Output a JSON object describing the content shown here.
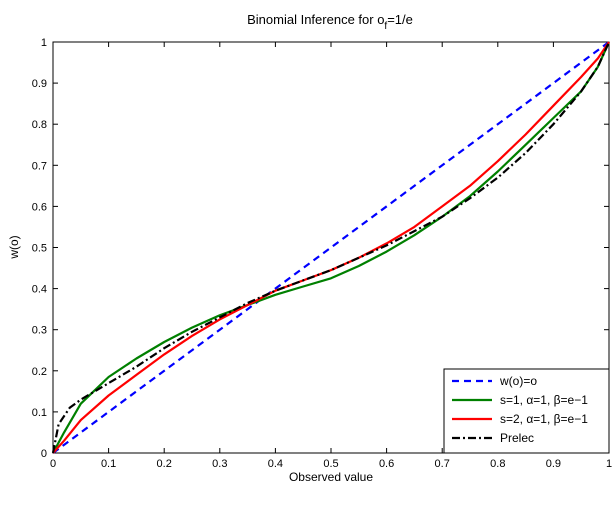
{
  "chart_data": {
    "type": "line",
    "title_main": "Binomial Inference for o",
    "title_sub": "f",
    "title_tail": "=1/e",
    "xlabel": "Observed value",
    "ylabel": "w(o)",
    "xlim": [
      0,
      1
    ],
    "ylim": [
      0,
      1
    ],
    "xticks": [
      "0",
      "0.1",
      "0.2",
      "0.3",
      "0.4",
      "0.5",
      "0.6",
      "0.7",
      "0.8",
      "0.9",
      "1"
    ],
    "yticks": [
      "0",
      "0.1",
      "0.2",
      "0.3",
      "0.4",
      "0.5",
      "0.6",
      "0.7",
      "0.8",
      "0.9",
      "1"
    ],
    "grid": false,
    "legend_position": "bottom-right",
    "series": [
      {
        "name": "w(o)=o",
        "color": "#0000ff",
        "style": "dashed",
        "x": [
          0,
          1
        ],
        "y": [
          0,
          1
        ]
      },
      {
        "name": "s=1, α=1, β=e−1",
        "color": "#008000",
        "style": "solid",
        "x": [
          0,
          0.02,
          0.05,
          0.1,
          0.15,
          0.2,
          0.25,
          0.3,
          0.35,
          0.4,
          0.45,
          0.5,
          0.55,
          0.6,
          0.65,
          0.7,
          0.75,
          0.8,
          0.85,
          0.9,
          0.95,
          0.98,
          1
        ],
        "y": [
          0,
          0.05,
          0.12,
          0.185,
          0.23,
          0.27,
          0.305,
          0.335,
          0.36,
          0.385,
          0.405,
          0.425,
          0.455,
          0.49,
          0.53,
          0.575,
          0.625,
          0.685,
          0.75,
          0.815,
          0.88,
          0.94,
          1
        ]
      },
      {
        "name": "s=2, α=1, β=e−1",
        "color": "#ff0000",
        "style": "solid",
        "x": [
          0,
          0.02,
          0.05,
          0.1,
          0.15,
          0.2,
          0.25,
          0.3,
          0.35,
          0.4,
          0.45,
          0.5,
          0.55,
          0.6,
          0.65,
          0.7,
          0.75,
          0.8,
          0.85,
          0.9,
          0.95,
          0.98,
          1
        ],
        "y": [
          0,
          0.03,
          0.08,
          0.14,
          0.19,
          0.24,
          0.285,
          0.325,
          0.36,
          0.395,
          0.42,
          0.445,
          0.475,
          0.51,
          0.55,
          0.6,
          0.65,
          0.71,
          0.775,
          0.845,
          0.915,
          0.96,
          1
        ]
      },
      {
        "name": "Prelec",
        "color": "#000000",
        "style": "dashdot",
        "x": [
          0,
          0.01,
          0.03,
          0.05,
          0.1,
          0.15,
          0.2,
          0.25,
          0.3,
          0.35,
          0.4,
          0.45,
          0.5,
          0.55,
          0.6,
          0.65,
          0.7,
          0.75,
          0.8,
          0.85,
          0.9,
          0.95,
          0.98,
          1
        ],
        "y": [
          0,
          0.07,
          0.11,
          0.13,
          0.17,
          0.21,
          0.255,
          0.295,
          0.33,
          0.365,
          0.395,
          0.42,
          0.445,
          0.475,
          0.505,
          0.54,
          0.575,
          0.62,
          0.67,
          0.73,
          0.8,
          0.88,
          0.94,
          1
        ]
      }
    ]
  }
}
